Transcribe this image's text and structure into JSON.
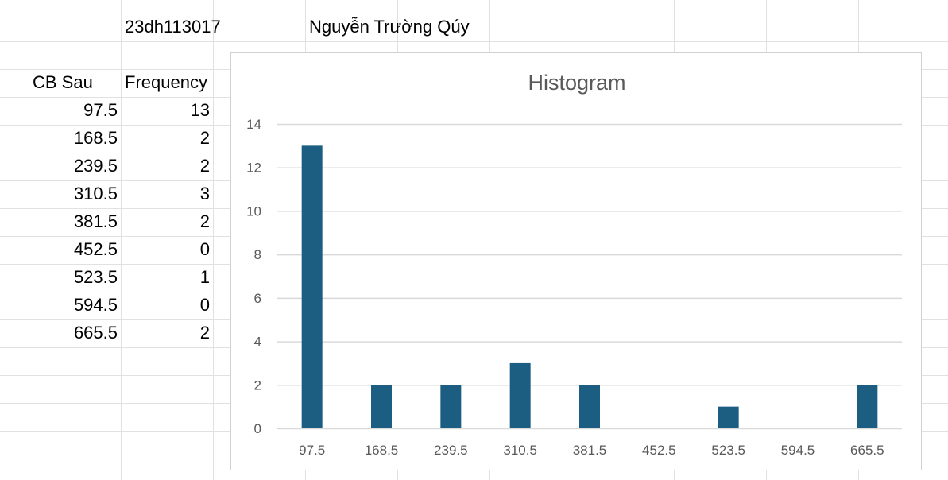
{
  "header": {
    "student_id": "23dh113017",
    "student_name": "Nguyễn Trường Qúy"
  },
  "table": {
    "col_labels": [
      "CB Sau",
      "Frequency"
    ],
    "rows": [
      {
        "bin": "97.5",
        "freq": "13"
      },
      {
        "bin": "168.5",
        "freq": "2"
      },
      {
        "bin": "239.5",
        "freq": "2"
      },
      {
        "bin": "310.5",
        "freq": "3"
      },
      {
        "bin": "381.5",
        "freq": "2"
      },
      {
        "bin": "452.5",
        "freq": "0"
      },
      {
        "bin": "523.5",
        "freq": "1"
      },
      {
        "bin": "594.5",
        "freq": "0"
      },
      {
        "bin": "665.5",
        "freq": "2"
      }
    ]
  },
  "colors": {
    "bar": "#1b5e82",
    "gridline": "#d9d9d9",
    "cell_border": "#e1e1e1",
    "axis_text": "#595959"
  },
  "chart_data": {
    "type": "bar",
    "title": "Histogram",
    "categories": [
      "97.5",
      "168.5",
      "239.5",
      "310.5",
      "381.5",
      "452.5",
      "523.5",
      "594.5",
      "665.5"
    ],
    "values": [
      13,
      2,
      2,
      3,
      2,
      0,
      1,
      0,
      2
    ],
    "xlabel": "",
    "ylabel": "",
    "ylim": [
      0,
      14
    ],
    "yticks": [
      0,
      2,
      4,
      6,
      8,
      10,
      12,
      14
    ],
    "grid": true,
    "legend": "none"
  }
}
